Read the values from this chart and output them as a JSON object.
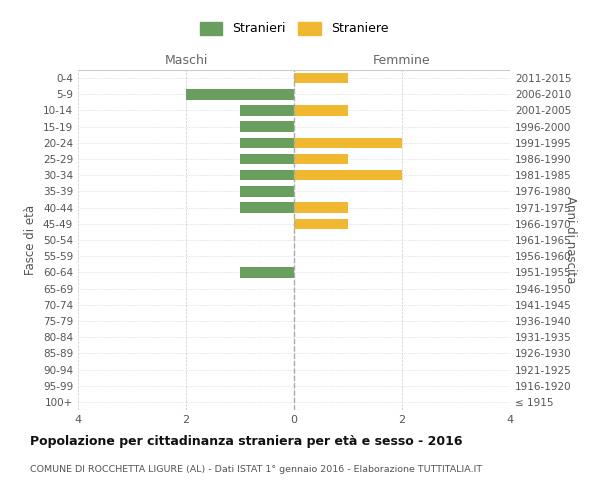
{
  "age_groups": [
    "100+",
    "95-99",
    "90-94",
    "85-89",
    "80-84",
    "75-79",
    "70-74",
    "65-69",
    "60-64",
    "55-59",
    "50-54",
    "45-49",
    "40-44",
    "35-39",
    "30-34",
    "25-29",
    "20-24",
    "15-19",
    "10-14",
    "5-9",
    "0-4"
  ],
  "birth_years": [
    "≤ 1915",
    "1916-1920",
    "1921-1925",
    "1926-1930",
    "1931-1935",
    "1936-1940",
    "1941-1945",
    "1946-1950",
    "1951-1955",
    "1956-1960",
    "1961-1965",
    "1966-1970",
    "1971-1975",
    "1976-1980",
    "1981-1985",
    "1986-1990",
    "1991-1995",
    "1996-2000",
    "2001-2005",
    "2006-2010",
    "2011-2015"
  ],
  "males": [
    0,
    0,
    0,
    0,
    0,
    0,
    0,
    0,
    1,
    0,
    0,
    0,
    1,
    1,
    1,
    1,
    1,
    1,
    1,
    2,
    0
  ],
  "females": [
    0,
    0,
    0,
    0,
    0,
    0,
    0,
    0,
    0,
    0,
    0,
    1,
    1,
    0,
    2,
    1,
    2,
    0,
    1,
    0,
    1
  ],
  "male_color": "#6a9e5e",
  "female_color": "#f0b830",
  "grid_color": "#cccccc",
  "center_line_color": "#aaaaaa",
  "bg_color": "#ffffff",
  "title": "Popolazione per cittadinanza straniera per età e sesso - 2016",
  "subtitle": "COMUNE DI ROCCHETTA LIGURE (AL) - Dati ISTAT 1° gennaio 2016 - Elaborazione TUTTITALIA.IT",
  "ylabel_left": "Fasce di età",
  "ylabel_right": "Anni di nascita",
  "xlim": 4,
  "legend_male": "Stranieri",
  "legend_female": "Straniere",
  "maschi_label": "Maschi",
  "femmine_label": "Femmine"
}
